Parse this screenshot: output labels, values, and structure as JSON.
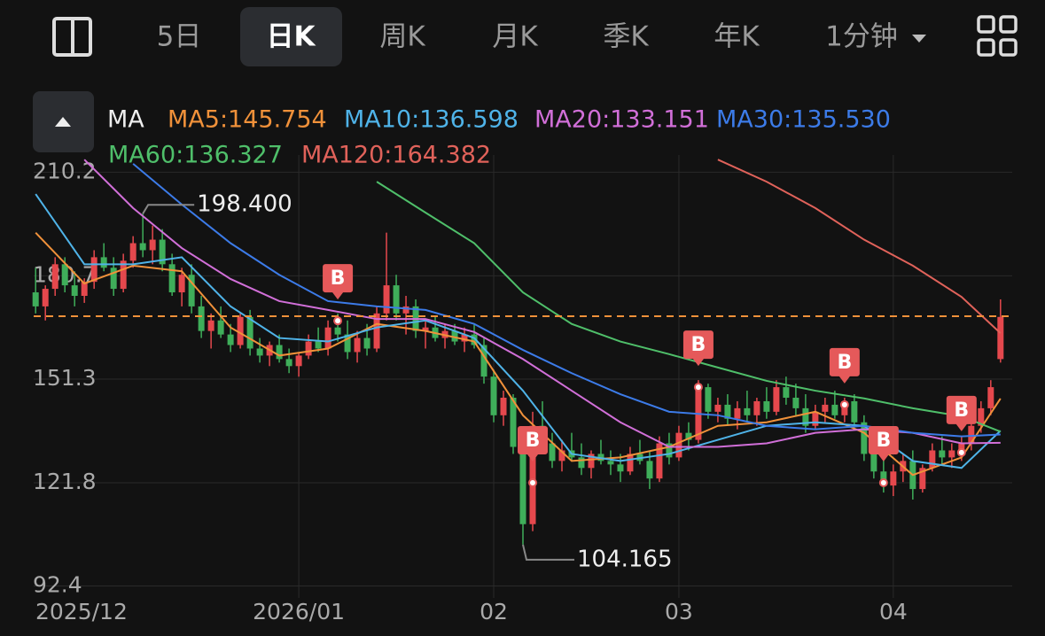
{
  "toolbar": {
    "tabs": [
      "5日",
      "日K",
      "周K",
      "月K",
      "季K",
      "年K",
      "1分钟"
    ],
    "selected": 1
  },
  "chart_data": {
    "type": "candlestick",
    "legend_title": "MA",
    "xlim": [
      -0.2,
      100.2
    ],
    "ylim": [
      89.0,
      215.1
    ],
    "yticks": [
      210.2,
      180.7,
      151.3,
      121.8,
      92.4
    ],
    "xticks": [
      {
        "value": 0,
        "label": "2025/12"
      },
      {
        "value": 27,
        "label": "2026/01"
      },
      {
        "value": 47,
        "label": "02"
      },
      {
        "value": 66,
        "label": "03"
      },
      {
        "value": 88,
        "label": "04"
      }
    ],
    "up_color": "#e5484d",
    "down_color": "#3fae5a",
    "price_line": 169.2,
    "price_line_color": "#f0913a",
    "candles": [
      [
        176,
        183,
        170,
        172
      ],
      [
        172,
        178,
        168,
        177
      ],
      [
        177,
        186,
        175,
        184
      ],
      [
        184,
        186,
        176,
        178
      ],
      [
        178,
        182,
        172,
        175
      ],
      [
        175,
        180,
        173,
        179
      ],
      [
        179,
        188,
        177,
        186
      ],
      [
        186,
        190,
        182,
        183
      ],
      [
        183,
        186,
        175,
        177
      ],
      [
        177,
        187,
        176,
        185
      ],
      [
        185,
        192,
        183,
        190
      ],
      [
        190,
        198.4,
        186,
        188
      ],
      [
        188,
        195,
        184,
        191
      ],
      [
        191,
        194,
        182,
        184
      ],
      [
        184,
        187,
        175,
        176
      ],
      [
        176,
        183,
        172,
        181
      ],
      [
        181,
        184,
        170,
        172
      ],
      [
        172,
        175,
        163,
        165
      ],
      [
        165,
        170,
        160,
        168
      ],
      [
        168,
        172,
        163,
        164
      ],
      [
        164,
        167,
        159,
        161
      ],
      [
        161,
        170,
        160,
        169
      ],
      [
        169,
        171,
        158,
        160
      ],
      [
        160,
        163,
        156,
        158
      ],
      [
        158,
        162,
        155,
        161
      ],
      [
        161,
        164,
        156,
        157
      ],
      [
        157,
        160,
        153,
        155
      ],
      [
        155,
        159,
        152,
        158
      ],
      [
        158,
        164,
        157,
        162
      ],
      [
        162,
        166,
        159,
        160
      ],
      [
        160,
        168,
        158,
        166
      ],
      [
        166,
        170,
        162,
        164
      ],
      [
        164,
        168,
        157,
        159
      ],
      [
        159,
        165,
        156,
        163
      ],
      [
        163,
        167,
        158,
        160
      ],
      [
        160,
        172,
        159,
        170
      ],
      [
        170,
        193,
        168,
        178
      ],
      [
        178,
        181,
        168,
        170
      ],
      [
        170,
        175,
        164,
        172
      ],
      [
        172,
        174,
        163,
        165
      ],
      [
        165,
        168,
        160,
        166
      ],
      [
        166,
        169,
        162,
        163
      ],
      [
        163,
        167,
        160,
        165
      ],
      [
        165,
        167,
        161,
        162
      ],
      [
        162,
        166,
        159,
        164
      ],
      [
        164,
        167,
        160,
        161
      ],
      [
        161,
        163,
        150,
        152
      ],
      [
        152,
        154,
        139,
        141
      ],
      [
        141,
        148,
        138,
        146
      ],
      [
        146,
        147,
        130,
        132
      ],
      [
        132,
        134,
        104.165,
        110
      ],
      [
        110,
        142,
        108,
        138
      ],
      [
        138,
        145,
        130,
        133
      ],
      [
        133,
        136,
        126,
        128
      ],
      [
        128,
        134,
        125,
        131
      ],
      [
        131,
        136,
        128,
        129
      ],
      [
        129,
        133,
        124,
        126
      ],
      [
        126,
        131,
        123,
        130
      ],
      [
        130,
        134,
        127,
        128
      ],
      [
        128,
        131,
        124,
        127
      ],
      [
        127,
        130,
        122,
        125
      ],
      [
        125,
        132,
        124,
        130
      ],
      [
        130,
        134,
        127,
        128
      ],
      [
        128,
        131,
        120,
        123
      ],
      [
        123,
        135,
        122,
        133
      ],
      [
        133,
        136,
        127,
        129
      ],
      [
        129,
        138,
        128,
        136
      ],
      [
        136,
        139,
        131,
        134
      ],
      [
        134,
        151,
        133,
        149
      ],
      [
        149,
        150,
        140,
        142
      ],
      [
        142,
        146,
        139,
        144
      ],
      [
        144,
        147,
        138,
        140
      ],
      [
        140,
        145,
        137,
        143
      ],
      [
        143,
        148,
        139,
        141
      ],
      [
        141,
        146,
        138,
        145
      ],
      [
        145,
        149,
        140,
        142
      ],
      [
        142,
        151,
        141,
        149
      ],
      [
        149,
        152,
        144,
        146
      ],
      [
        146,
        150,
        141,
        143
      ],
      [
        143,
        147,
        136,
        138
      ],
      [
        138,
        144,
        137,
        142
      ],
      [
        142,
        146,
        139,
        144
      ],
      [
        144,
        148,
        140,
        141
      ],
      [
        141,
        146,
        139,
        145
      ],
      [
        145,
        147,
        137,
        139
      ],
      [
        139,
        141,
        128,
        130
      ],
      [
        130,
        133,
        123,
        125
      ],
      [
        125,
        129,
        119,
        121
      ],
      [
        121,
        127,
        118,
        125
      ],
      [
        125,
        130,
        122,
        128
      ],
      [
        128,
        131,
        117,
        120
      ],
      [
        120,
        127,
        119,
        126
      ],
      [
        126,
        133,
        125,
        131
      ],
      [
        131,
        135,
        127,
        129
      ],
      [
        129,
        133,
        126,
        131
      ],
      [
        131,
        135,
        128,
        133
      ],
      [
        133,
        140,
        131,
        138
      ],
      [
        138,
        145,
        136,
        143
      ],
      [
        143,
        151,
        141,
        149
      ],
      [
        157,
        174,
        156,
        169
      ]
    ],
    "ma_x": [
      0,
      5,
      10,
      15,
      20,
      25,
      30,
      35,
      40,
      45,
      50,
      55,
      60,
      65,
      70,
      75,
      80,
      85,
      90,
      95,
      99
    ],
    "series": [
      {
        "name": "MA5",
        "label": "MA5:145.754",
        "color": "#f0913a",
        "values": [
          193,
          178.5,
          183.6,
          182,
          166,
          158,
          160,
          167,
          165,
          162,
          141,
          128,
          129,
          132,
          138,
          139,
          142,
          136,
          124,
          129,
          145.754
        ]
      },
      {
        "name": "MA10",
        "label": "MA10:136.598",
        "color": "#4fb3e8",
        "values": [
          204,
          184,
          184,
          186,
          172,
          163,
          162,
          166,
          168,
          163,
          148,
          130,
          128,
          130,
          134,
          138,
          139,
          138,
          128,
          126,
          136.598
        ]
      },
      {
        "name": "MA20",
        "label": "MA20:133.151",
        "color": "#d16fd8",
        "values": [
          null,
          213.8,
          200,
          188.6,
          179.8,
          173.5,
          171,
          168.4,
          168.4,
          164.7,
          157,
          148,
          139,
          132,
          132,
          133,
          136,
          137,
          136,
          133,
          133.151
        ]
      },
      {
        "name": "MA30",
        "label": "MA30:135.530",
        "color": "#3c7be8",
        "values": [
          null,
          null,
          212.6,
          201,
          190,
          181,
          173.5,
          172,
          171,
          167,
          159.6,
          153,
          147,
          142,
          141,
          138,
          137,
          138,
          136,
          135,
          135.53
        ]
      },
      {
        "name": "MA60",
        "label": "MA60:136.327",
        "color": "#4fbf6a",
        "values": [
          null,
          null,
          null,
          null,
          null,
          null,
          null,
          207.5,
          198.7,
          190,
          176,
          167,
          162,
          158.4,
          154.6,
          150.8,
          148,
          145.8,
          143,
          140.7,
          136.327
        ]
      },
      {
        "name": "MA120",
        "label": "MA120:164.382",
        "color": "#e0625a",
        "values": [
          null,
          null,
          null,
          null,
          null,
          null,
          null,
          null,
          null,
          null,
          null,
          null,
          null,
          null,
          213.8,
          207.5,
          200,
          191,
          183.6,
          174.7,
          164.382
        ]
      }
    ],
    "markers": [
      {
        "x": 31,
        "value": 167.9,
        "label": "B"
      },
      {
        "x": 51,
        "value": 121.8,
        "label": "B"
      },
      {
        "x": 68,
        "value": 149,
        "label": "B"
      },
      {
        "x": 83,
        "value": 144,
        "label": "B"
      },
      {
        "x": 87,
        "value": 121.8,
        "label": "B"
      },
      {
        "x": 95,
        "value": 130.4,
        "label": "B"
      }
    ],
    "annotations": [
      {
        "x": 11,
        "value": 198.4,
        "label": "198.400"
      },
      {
        "x": 50,
        "value": 104.165,
        "label": "104.165"
      }
    ]
  }
}
